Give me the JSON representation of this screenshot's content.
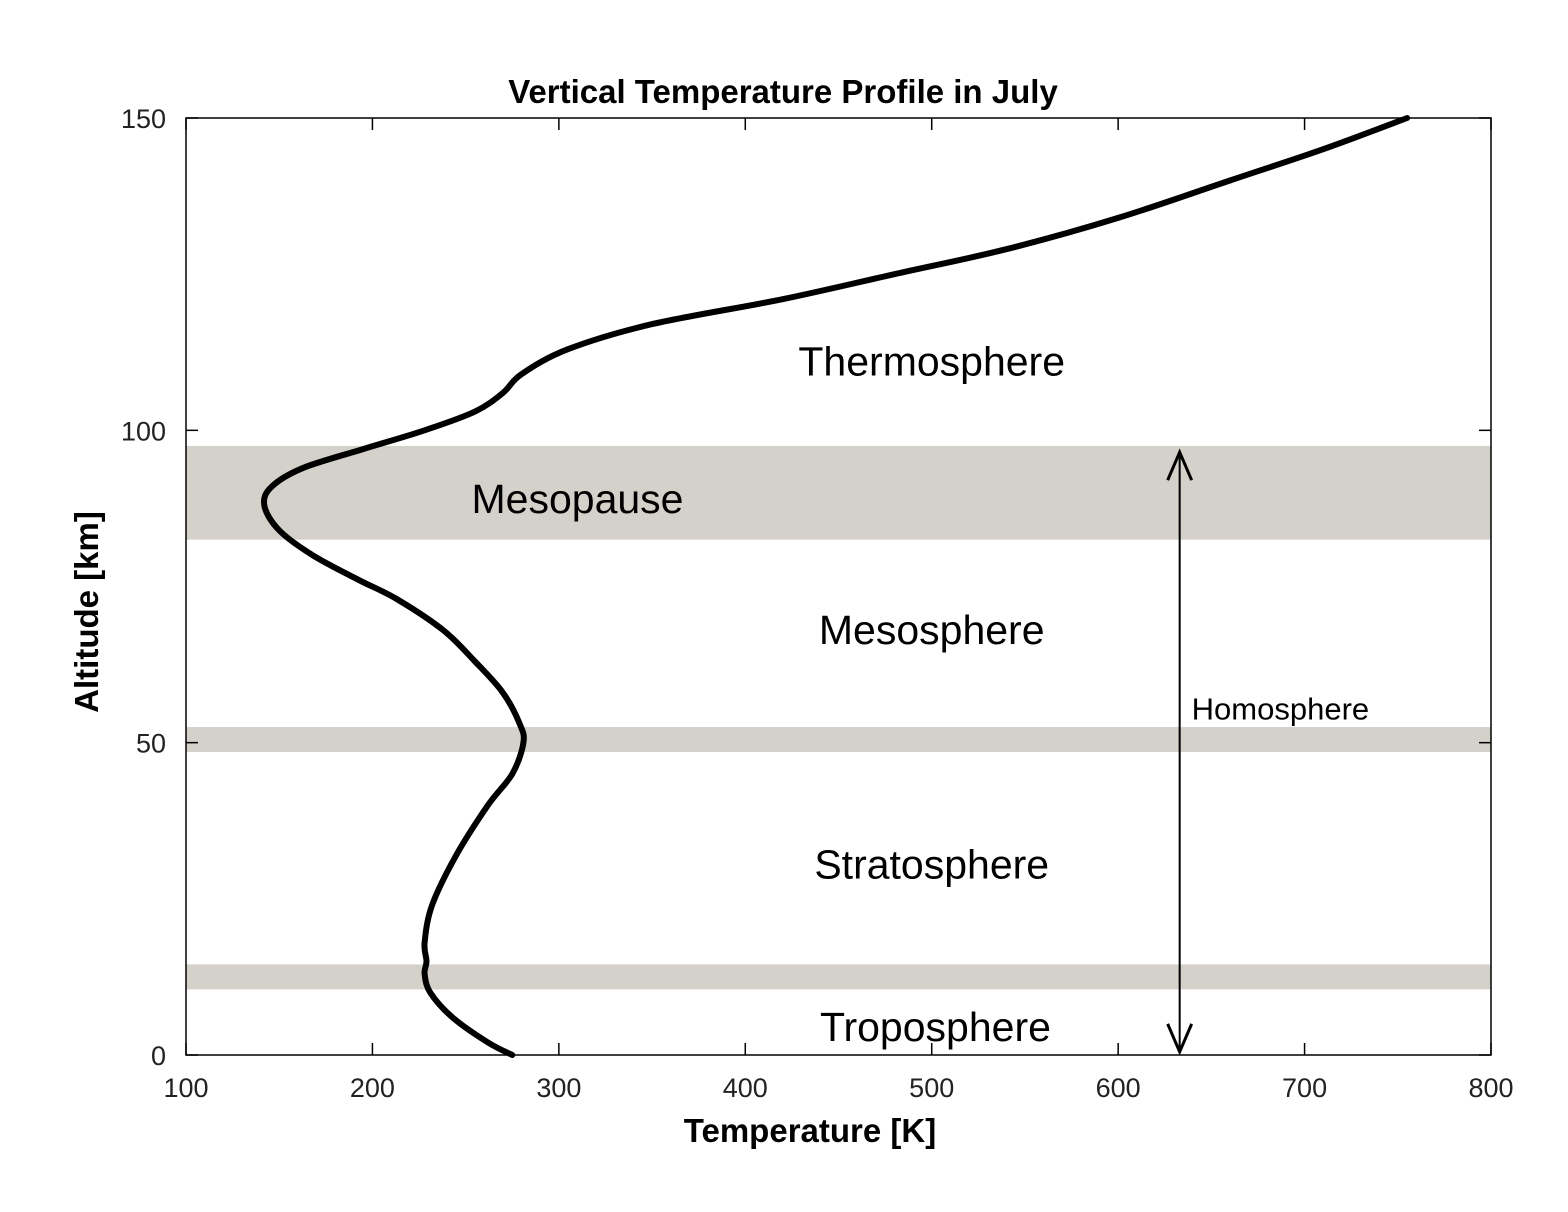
{
  "chart_data": {
    "type": "line",
    "title": "Vertical Temperature Profile in July",
    "xlabel": "Temperature [K]",
    "ylabel": "Altitude [km]",
    "xlim": [
      100,
      800
    ],
    "ylim": [
      0,
      150
    ],
    "x_ticks": [
      100,
      200,
      300,
      400,
      500,
      600,
      700,
      800
    ],
    "y_ticks": [
      0,
      50,
      100,
      150
    ],
    "grid": false,
    "colors": {
      "curve": "#000000",
      "band": "#d4d0ca",
      "axis": "#000000"
    },
    "series": [
      {
        "x": [
          275,
          262,
          243,
          231,
          228,
          229,
          228,
          232,
          245,
          262,
          275,
          281,
          279,
          270,
          255,
          238,
          213,
          193,
          168,
          150,
          142,
          146,
          163,
          195,
          228,
          255,
          270,
          280,
          305,
          350,
          420,
          480,
          540,
          600,
          660,
          710,
          755
        ],
        "y": [
          0,
          2,
          6,
          10,
          13,
          15,
          18,
          24,
          32,
          40,
          45,
          50,
          53,
          58,
          63,
          68,
          73,
          76,
          80,
          84,
          88,
          91,
          94,
          97,
          100,
          103,
          106,
          109,
          113,
          117,
          121,
          125,
          129,
          134,
          140,
          145,
          150
        ]
      }
    ],
    "bands": [
      {
        "y0": 82.5,
        "y1": 97.5
      },
      {
        "y0": 48.5,
        "y1": 52.5
      },
      {
        "y0": 10.5,
        "y1": 14.5
      }
    ],
    "layers": [
      {
        "label": "Thermosphere",
        "x": 500,
        "y": 111
      },
      {
        "label": "Mesopause",
        "x": 310,
        "y": 89
      },
      {
        "label": "Mesosphere",
        "x": 500,
        "y": 68
      },
      {
        "label": "Stratosphere",
        "x": 500,
        "y": 30.5
      },
      {
        "label": "Troposphere",
        "x": 502,
        "y": 4.5
      }
    ],
    "homosphere": {
      "label": "Homosphere",
      "x": 633,
      "y_bottom": 0.5,
      "y_top": 96.5
    }
  }
}
